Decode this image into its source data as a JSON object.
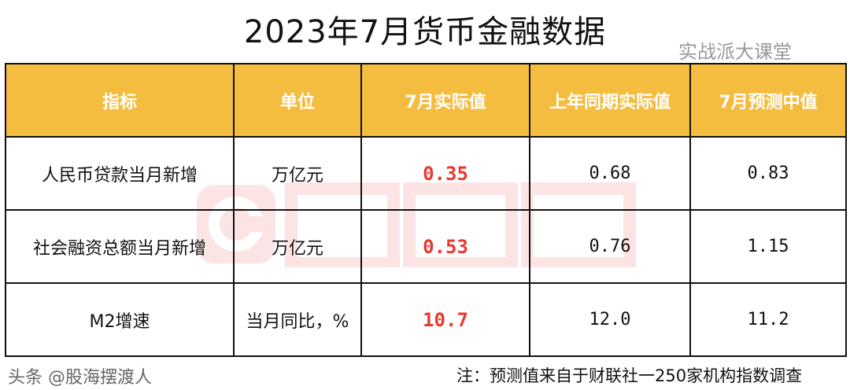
{
  "title": "2023年7月货币金融数据",
  "table": {
    "headers": [
      "指标",
      "单位",
      "7月实际值",
      "上年同期实际值",
      "7月预测中值"
    ],
    "rows": [
      [
        "人民币贷款当月新增",
        "万亿元",
        "0.35",
        "0.68",
        "0.83"
      ],
      [
        "社会融资总额当月新增",
        "万亿元",
        "0.53",
        "0.76",
        "1.15"
      ],
      [
        "M2增速",
        "当月同比，%",
        "10.7",
        "12.0",
        "11.2"
      ]
    ]
  },
  "note": "注：预测值来自于财联社一250家机构指数调查",
  "watermarks": {
    "logo": "财联社",
    "wechat": "实战派大课堂",
    "toutiao": "头条 @股海摆渡人"
  },
  "colors": {
    "header_bg": "#f4bd40",
    "actual_value": "#e8392f"
  }
}
